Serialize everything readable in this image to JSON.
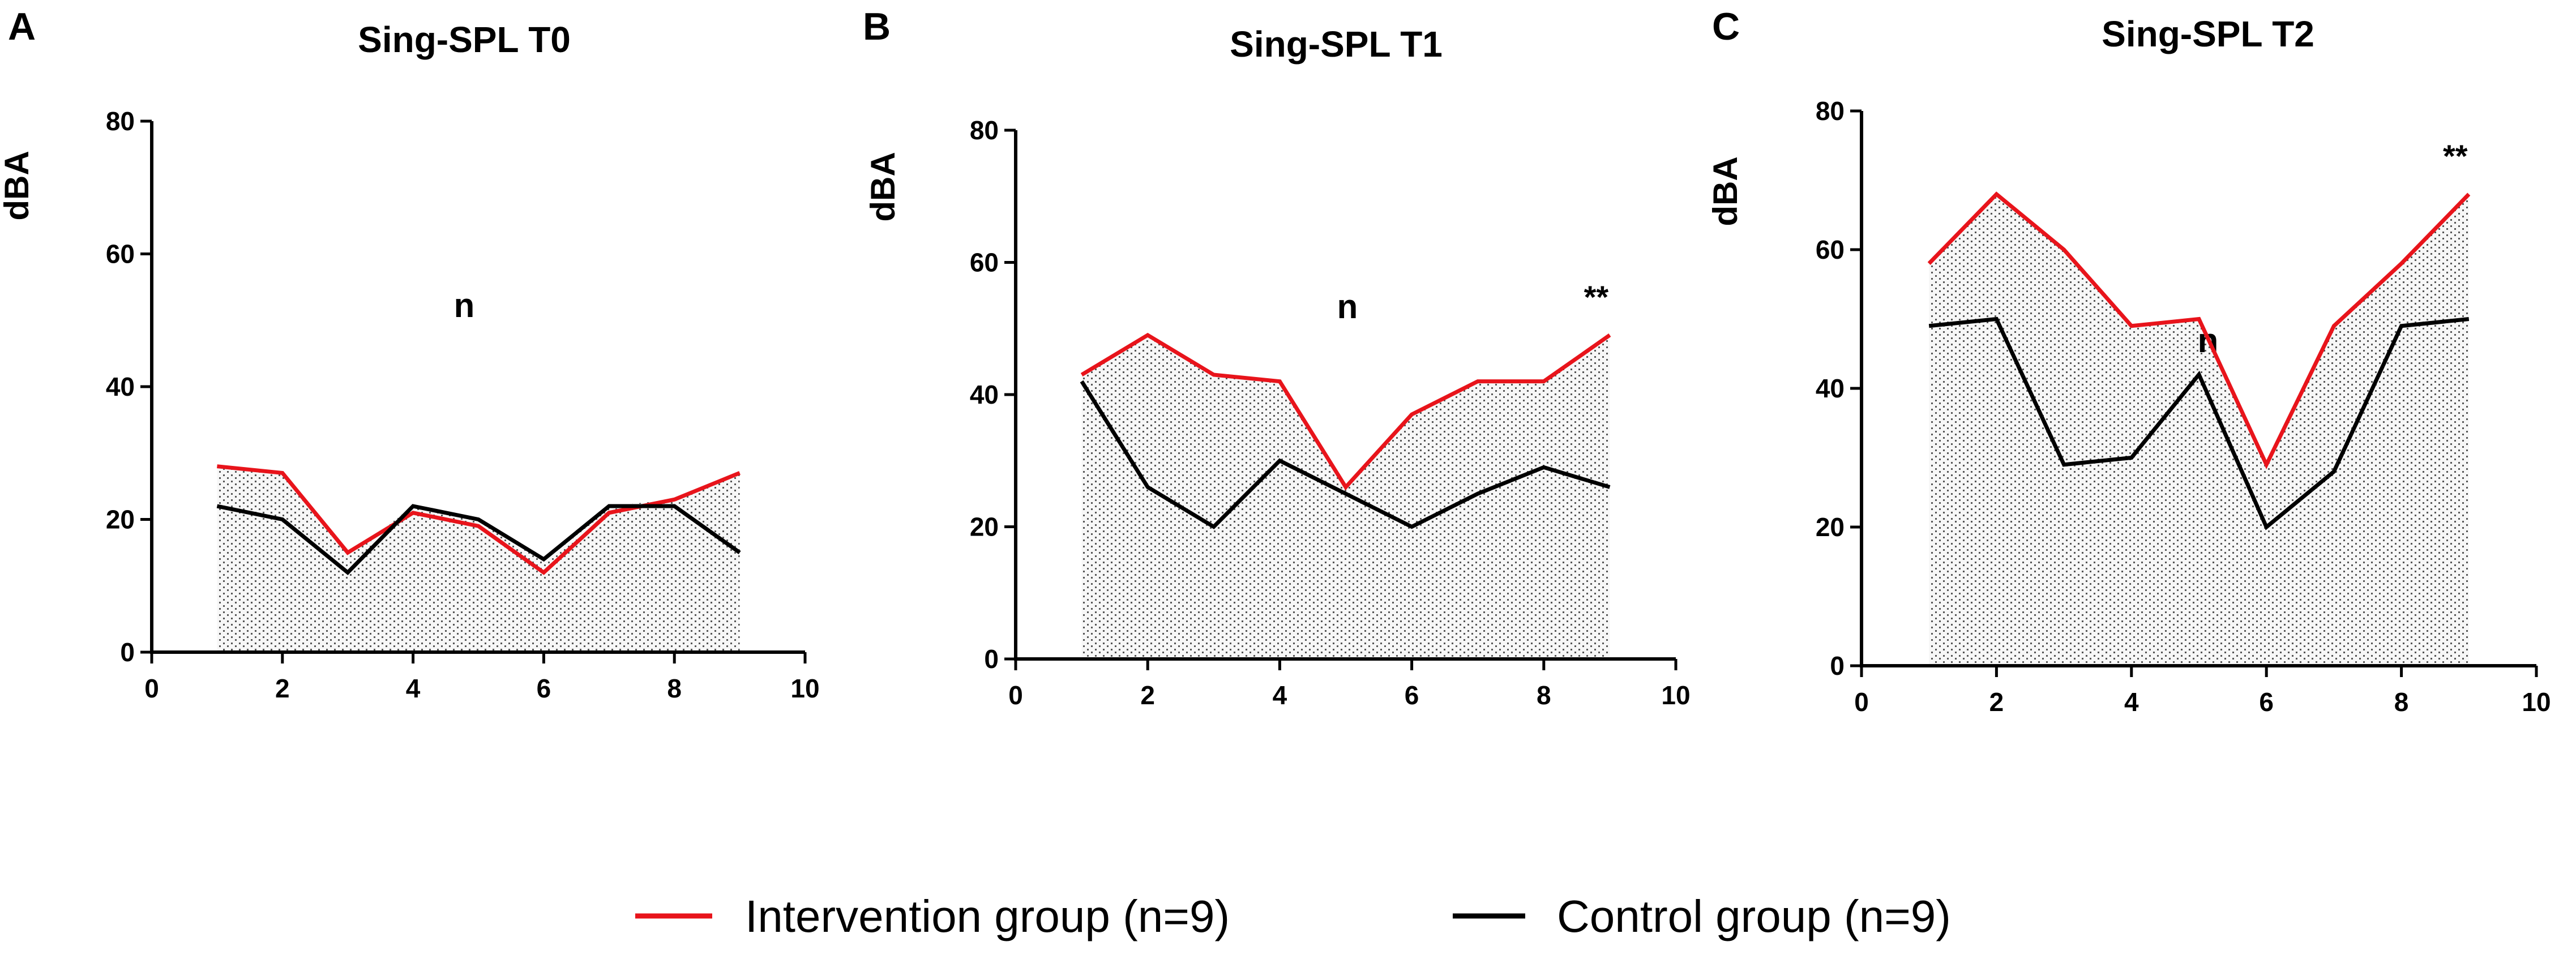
{
  "legend": {
    "items": [
      {
        "label": "Intervention group (n=9)",
        "color": "#e8141b"
      },
      {
        "label": "Control group (n=9)",
        "color": "#000000"
      }
    ]
  },
  "chart_data": [
    {
      "type": "line",
      "panel": "A",
      "title": "Sing-SPL T0",
      "xlabel": "n",
      "ylabel": "dBA",
      "xlim": [
        0,
        10
      ],
      "ylim": [
        0,
        80
      ],
      "xticks": [
        0,
        2,
        4,
        6,
        8,
        10
      ],
      "yticks": [
        0,
        20,
        40,
        60,
        80
      ],
      "x": [
        1,
        2,
        3,
        4,
        5,
        6,
        7,
        8,
        9
      ],
      "series": [
        {
          "name": "Intervention group (n=9)",
          "color": "#e8141b",
          "values": [
            28,
            27,
            15,
            21,
            19,
            12,
            21,
            23,
            27
          ]
        },
        {
          "name": "Control group (n=9)",
          "color": "#000000",
          "values": [
            22,
            20,
            12,
            22,
            20,
            14,
            22,
            22,
            15
          ]
        }
      ],
      "annotation": ""
    },
    {
      "type": "line",
      "panel": "B",
      "title": "Sing-SPL T1",
      "xlabel": "n",
      "ylabel": "dBA",
      "xlim": [
        0,
        10
      ],
      "ylim": [
        0,
        80
      ],
      "xticks": [
        0,
        2,
        4,
        6,
        8,
        10
      ],
      "yticks": [
        0,
        20,
        40,
        60,
        80
      ],
      "x": [
        1,
        2,
        3,
        4,
        5,
        6,
        7,
        8,
        9
      ],
      "series": [
        {
          "name": "Intervention group (n=9)",
          "color": "#e8141b",
          "values": [
            43,
            49,
            43,
            42,
            26,
            37,
            42,
            42,
            49
          ]
        },
        {
          "name": "Control group (n=9)",
          "color": "#000000",
          "values": [
            42,
            26,
            20,
            30,
            25,
            20,
            25,
            29,
            26
          ]
        }
      ],
      "annotation": "**"
    },
    {
      "type": "line",
      "panel": "C",
      "title": "Sing-SPL T2",
      "xlabel": "n",
      "ylabel": "dBA",
      "xlim": [
        0,
        10
      ],
      "ylim": [
        0,
        80
      ],
      "xticks": [
        0,
        2,
        4,
        6,
        8,
        10
      ],
      "yticks": [
        0,
        20,
        40,
        60,
        80
      ],
      "x": [
        1,
        2,
        3,
        4,
        5,
        6,
        7,
        8,
        9
      ],
      "series": [
        {
          "name": "Intervention group (n=9)",
          "color": "#e8141b",
          "values": [
            58,
            68,
            60,
            49,
            50,
            29,
            49,
            58,
            68
          ]
        },
        {
          "name": "Control group (n=9)",
          "color": "#000000",
          "values": [
            49,
            50,
            29,
            30,
            42,
            20,
            28,
            49,
            50
          ]
        }
      ],
      "annotation": "**"
    }
  ]
}
